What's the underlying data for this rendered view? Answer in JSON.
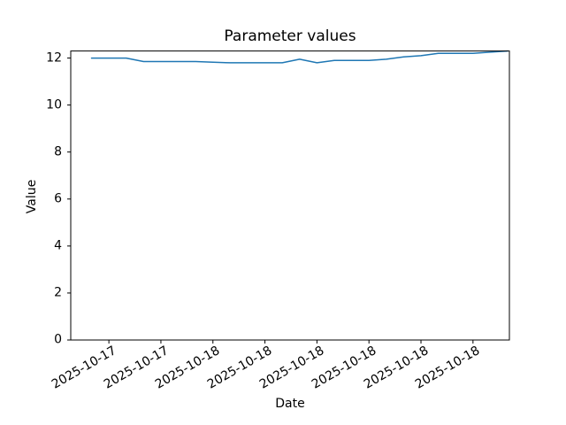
{
  "chart_data": {
    "type": "line",
    "title": "Parameter values",
    "xlabel": "Date",
    "ylabel": "Value",
    "line_color": "#1f77b4",
    "grid": false,
    "legend": null,
    "xlim": [
      -1.2,
      24.1
    ],
    "ylim": [
      0,
      12.3
    ],
    "x": [
      0,
      1,
      2,
      3,
      4,
      5,
      6,
      7,
      8,
      9,
      10,
      11,
      12,
      13,
      14,
      15,
      16,
      17,
      18,
      19,
      20,
      21,
      22,
      23,
      24
    ],
    "values": [
      12.0,
      12.0,
      12.0,
      11.85,
      11.85,
      11.85,
      11.85,
      11.82,
      11.8,
      11.8,
      11.8,
      11.8,
      11.95,
      11.8,
      11.9,
      11.9,
      11.9,
      11.95,
      12.05,
      12.1,
      12.2,
      12.2,
      12.2,
      12.25,
      12.3
    ],
    "x_ticks": [
      {
        "pos": 1,
        "label": "2025-10-17"
      },
      {
        "pos": 4,
        "label": "2025-10-17"
      },
      {
        "pos": 7,
        "label": "2025-10-18"
      },
      {
        "pos": 10,
        "label": "2025-10-18"
      },
      {
        "pos": 13,
        "label": "2025-10-18"
      },
      {
        "pos": 16,
        "label": "2025-10-18"
      },
      {
        "pos": 19,
        "label": "2025-10-18"
      },
      {
        "pos": 22,
        "label": "2025-10-18"
      }
    ],
    "y_ticks": [
      {
        "pos": 0,
        "label": "0"
      },
      {
        "pos": 2,
        "label": "2"
      },
      {
        "pos": 4,
        "label": "4"
      },
      {
        "pos": 6,
        "label": "6"
      },
      {
        "pos": 8,
        "label": "8"
      },
      {
        "pos": 10,
        "label": "10"
      },
      {
        "pos": 12,
        "label": "12"
      }
    ]
  }
}
